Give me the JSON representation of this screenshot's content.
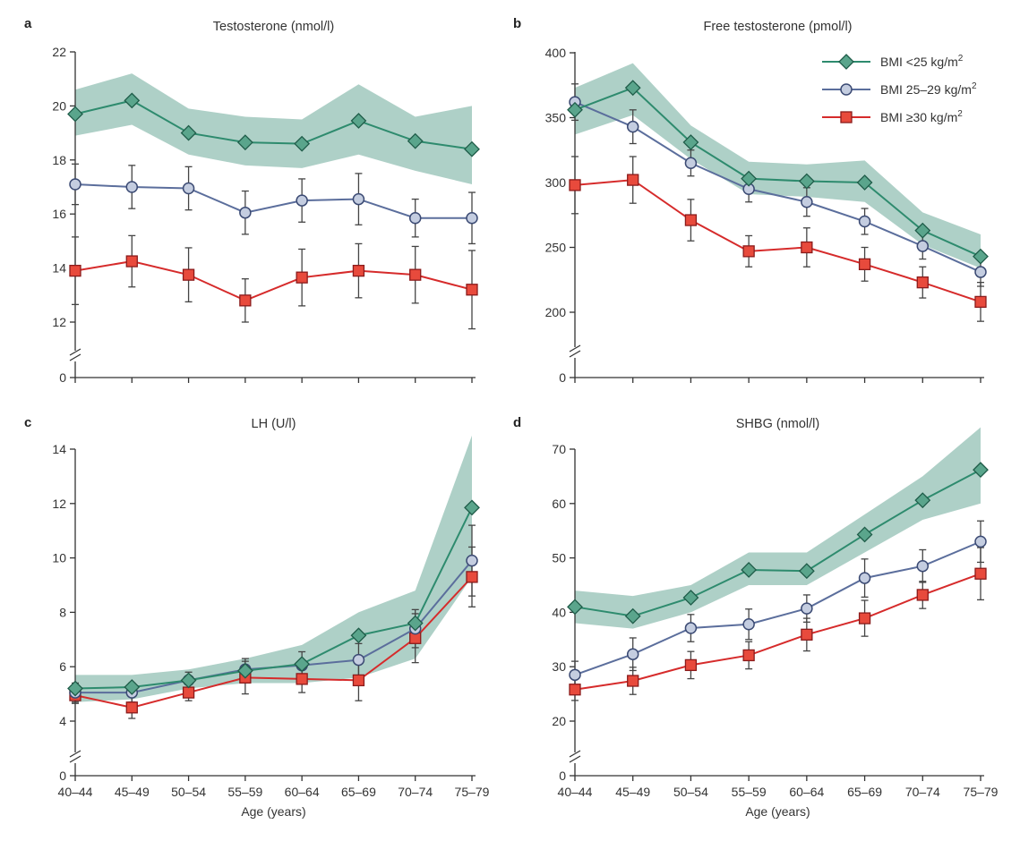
{
  "figure": {
    "xlabel": "Age (years)",
    "categories": [
      "40–44",
      "45–49",
      "50–54",
      "55–59",
      "60–64",
      "65–69",
      "70–74",
      "75–79"
    ],
    "legend": {
      "placement": "top-right of panel b",
      "entries": [
        {
          "name": "BMI <25 kg/m",
          "sup": "2",
          "marker": "diamond-icon",
          "color": "#2e8b6e"
        },
        {
          "name": "BMI 25–29 kg/m",
          "sup": "2",
          "marker": "circle-icon",
          "color": "#5b6e9c"
        },
        {
          "name": "BMI ≥30 kg/m",
          "sup": "2",
          "marker": "square-icon",
          "color": "#d62b2b"
        }
      ]
    },
    "colors": {
      "band": "#aed0c7",
      "green_line": "#2e8b6e",
      "green_fill": "#5aa58c",
      "blue_line": "#5b6e9c",
      "blue_fill": "#c4cde0",
      "red_line": "#d62b2b",
      "red_fill": "#e84a3c",
      "axis": "#333333",
      "error": "#444444"
    }
  },
  "chart_data": [
    {
      "type": "line",
      "panel": "a",
      "title": "Testosterone (nmol/l)",
      "xlabel": "",
      "ylim": [
        0,
        22
      ],
      "y_axis_break": [
        0,
        11
      ],
      "yticks": [
        0,
        12,
        14,
        16,
        18,
        20,
        22
      ],
      "grid": false,
      "band": {
        "lower": [
          18.9,
          19.3,
          18.2,
          17.8,
          17.7,
          18.2,
          17.6,
          17.1
        ],
        "upper": [
          20.6,
          21.2,
          19.9,
          19.6,
          19.5,
          20.8,
          19.6,
          20.0
        ]
      },
      "series": [
        {
          "name": "BMI <25 kg/m2",
          "values": [
            19.7,
            20.2,
            19.0,
            18.65,
            18.6,
            19.45,
            18.7,
            18.4
          ]
        },
        {
          "name": "BMI 25–29 kg/m2",
          "values": [
            17.1,
            17.0,
            16.95,
            16.05,
            16.5,
            16.55,
            15.85,
            15.85
          ],
          "err": [
            0.75,
            0.8,
            0.8,
            0.8,
            0.8,
            0.95,
            0.7,
            0.95
          ]
        },
        {
          "name": "BMI ≥30 kg/m2",
          "values": [
            13.9,
            14.25,
            13.75,
            12.8,
            13.65,
            13.9,
            13.75,
            13.2
          ],
          "err": [
            1.25,
            0.95,
            1.0,
            0.8,
            1.05,
            1.0,
            1.05,
            1.45
          ]
        }
      ]
    },
    {
      "type": "line",
      "panel": "b",
      "title": "Free testosterone (pmol/l)",
      "xlabel": "",
      "ylim": [
        0,
        400
      ],
      "y_axis_break": [
        0,
        180
      ],
      "yticks": [
        0,
        200,
        250,
        300,
        350,
        400
      ],
      "grid": false,
      "band": {
        "lower": [
          337,
          352,
          318,
          291,
          289,
          285,
          252,
          234
        ],
        "upper": [
          373,
          392,
          344,
          316,
          314,
          317,
          277,
          260
        ]
      },
      "series": [
        {
          "name": "BMI <25 kg/m2",
          "values": [
            356,
            373,
            331,
            303,
            301,
            300,
            263,
            243
          ]
        },
        {
          "name": "BMI 25–29 kg/m2",
          "values": [
            362,
            343,
            315,
            295,
            285,
            270,
            251,
            231
          ],
          "err": [
            14,
            13,
            10,
            10,
            11,
            10,
            10,
            11
          ]
        },
        {
          "name": "BMI ≥30 kg/m2",
          "values": [
            298,
            302,
            271,
            247,
            250,
            237,
            223,
            208
          ],
          "err": [
            22,
            18,
            16,
            12,
            15,
            13,
            12,
            15
          ]
        }
      ]
    },
    {
      "type": "line",
      "panel": "c",
      "title": "LH (U/l)",
      "xlabel": "Age (years)",
      "ylim": [
        0,
        14
      ],
      "y_axis_break": [
        0,
        3
      ],
      "yticks": [
        0,
        4,
        6,
        8,
        10,
        12,
        14
      ],
      "grid": false,
      "band": {
        "lower": [
          4.7,
          4.8,
          5.2,
          5.4,
          5.4,
          5.6,
          6.3,
          9.3
        ],
        "upper": [
          5.7,
          5.7,
          5.9,
          6.3,
          6.8,
          8.0,
          8.8,
          14.5
        ]
      },
      "series": [
        {
          "name": "BMI <25 kg/m2",
          "values": [
            5.2,
            5.25,
            5.5,
            5.85,
            6.1,
            7.15,
            7.6,
            11.85
          ]
        },
        {
          "name": "BMI 25–29 kg/m2",
          "values": [
            5.05,
            5.05,
            5.5,
            5.9,
            6.05,
            6.25,
            7.4,
            9.9
          ],
          "err": [
            0.35,
            0.35,
            0.3,
            0.4,
            0.5,
            0.6,
            0.7,
            1.3
          ]
        },
        {
          "name": "BMI ≥30 kg/m2",
          "values": [
            4.95,
            4.5,
            5.05,
            5.6,
            5.55,
            5.5,
            7.05,
            9.3
          ],
          "err": [
            0.3,
            0.4,
            0.3,
            0.6,
            0.5,
            0.75,
            0.9,
            1.1
          ]
        }
      ]
    },
    {
      "type": "line",
      "panel": "d",
      "title": "SHBG (nmol/l)",
      "xlabel": "Age (years)",
      "ylim": [
        0,
        70
      ],
      "y_axis_break": [
        0,
        16
      ],
      "yticks": [
        0,
        20,
        30,
        40,
        50,
        60,
        70
      ],
      "grid": false,
      "band": {
        "lower": [
          38,
          37,
          40,
          45,
          45,
          51,
          57,
          60
        ],
        "upper": [
          44,
          43,
          45,
          51,
          51,
          58,
          65,
          74
        ]
      },
      "series": [
        {
          "name": "BMI <25 kg/m2",
          "values": [
            41,
            39.3,
            42.7,
            47.8,
            47.6,
            54.3,
            60.6,
            66.2
          ]
        },
        {
          "name": "BMI 25–29 kg/m2",
          "values": [
            28.5,
            32.3,
            37.1,
            37.8,
            40.7,
            46.3,
            48.5,
            53
          ],
          "err": [
            2.5,
            3,
            2.5,
            2.8,
            2.5,
            3.5,
            3,
            3.8
          ]
        },
        {
          "name": "BMI ≥30 kg/m2",
          "values": [
            25.8,
            27.4,
            30.3,
            32.1,
            35.9,
            38.9,
            43.2,
            47.1
          ],
          "err": [
            2,
            2.5,
            2.5,
            2.5,
            3,
            3.3,
            2.5,
            4.8
          ]
        }
      ]
    }
  ]
}
